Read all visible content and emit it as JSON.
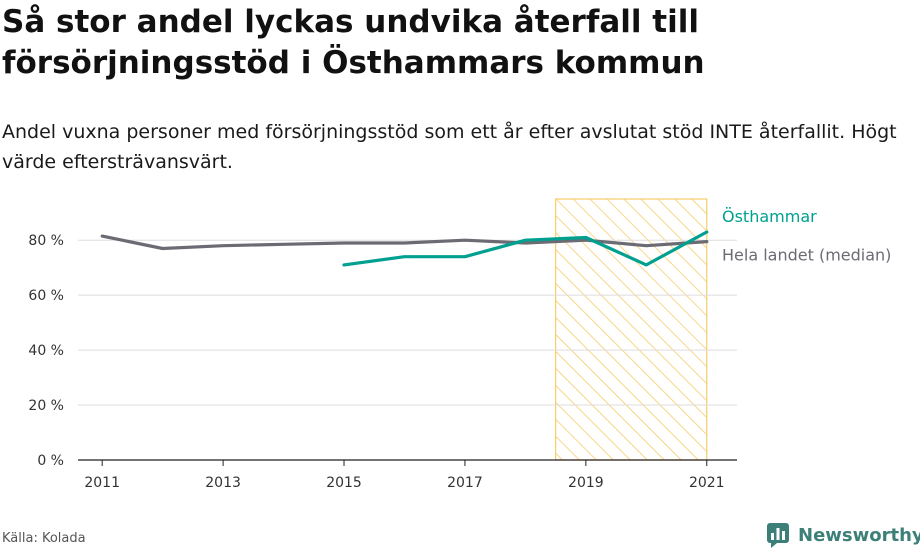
{
  "title": "Så stor andel lyckas undvika återfall till försörjningsstöd i Östhammars kommun",
  "subtitle": "Andel vuxna personer med försörjningsstöd som ett år efter avslutat stöd INTE återfallit. Högt värde eftersträvansvärt.",
  "source": "Källa: Kolada",
  "brand": "Newsworthy",
  "colors": {
    "osthammar": "#00a090",
    "median": "#6b6b73",
    "highlight": "#f5cd6a",
    "grid": "#dddddd",
    "axis": "#222222",
    "brand": "#3c7f78"
  },
  "chart_data": {
    "type": "line",
    "x": [
      2011,
      2012,
      2013,
      2014,
      2015,
      2016,
      2017,
      2018,
      2019,
      2020,
      2021
    ],
    "xticks": [
      2011,
      2013,
      2015,
      2017,
      2019,
      2021
    ],
    "xtick_labels": [
      "2011",
      "2013",
      "2015",
      "2017",
      "2019",
      "2021"
    ],
    "yticks": [
      0,
      20,
      40,
      60,
      80
    ],
    "ytick_labels": [
      "0 %",
      "20 %",
      "40 %",
      "60 %",
      "80 %"
    ],
    "ylim": [
      0,
      95
    ],
    "xlim": [
      2010.6,
      2021.5
    ],
    "grid": "horizontal",
    "highlight_range": [
      2018.5,
      2021
    ],
    "series": [
      {
        "name": "Hela landet (median)",
        "color": "#6b6b73",
        "values": [
          81.5,
          77,
          78,
          78.5,
          79,
          79,
          80,
          79,
          80,
          78,
          79.5
        ]
      },
      {
        "name": "Östhammar",
        "color": "#00a090",
        "values": [
          null,
          null,
          null,
          null,
          71,
          74,
          74,
          80,
          81,
          71,
          83
        ]
      }
    ]
  }
}
